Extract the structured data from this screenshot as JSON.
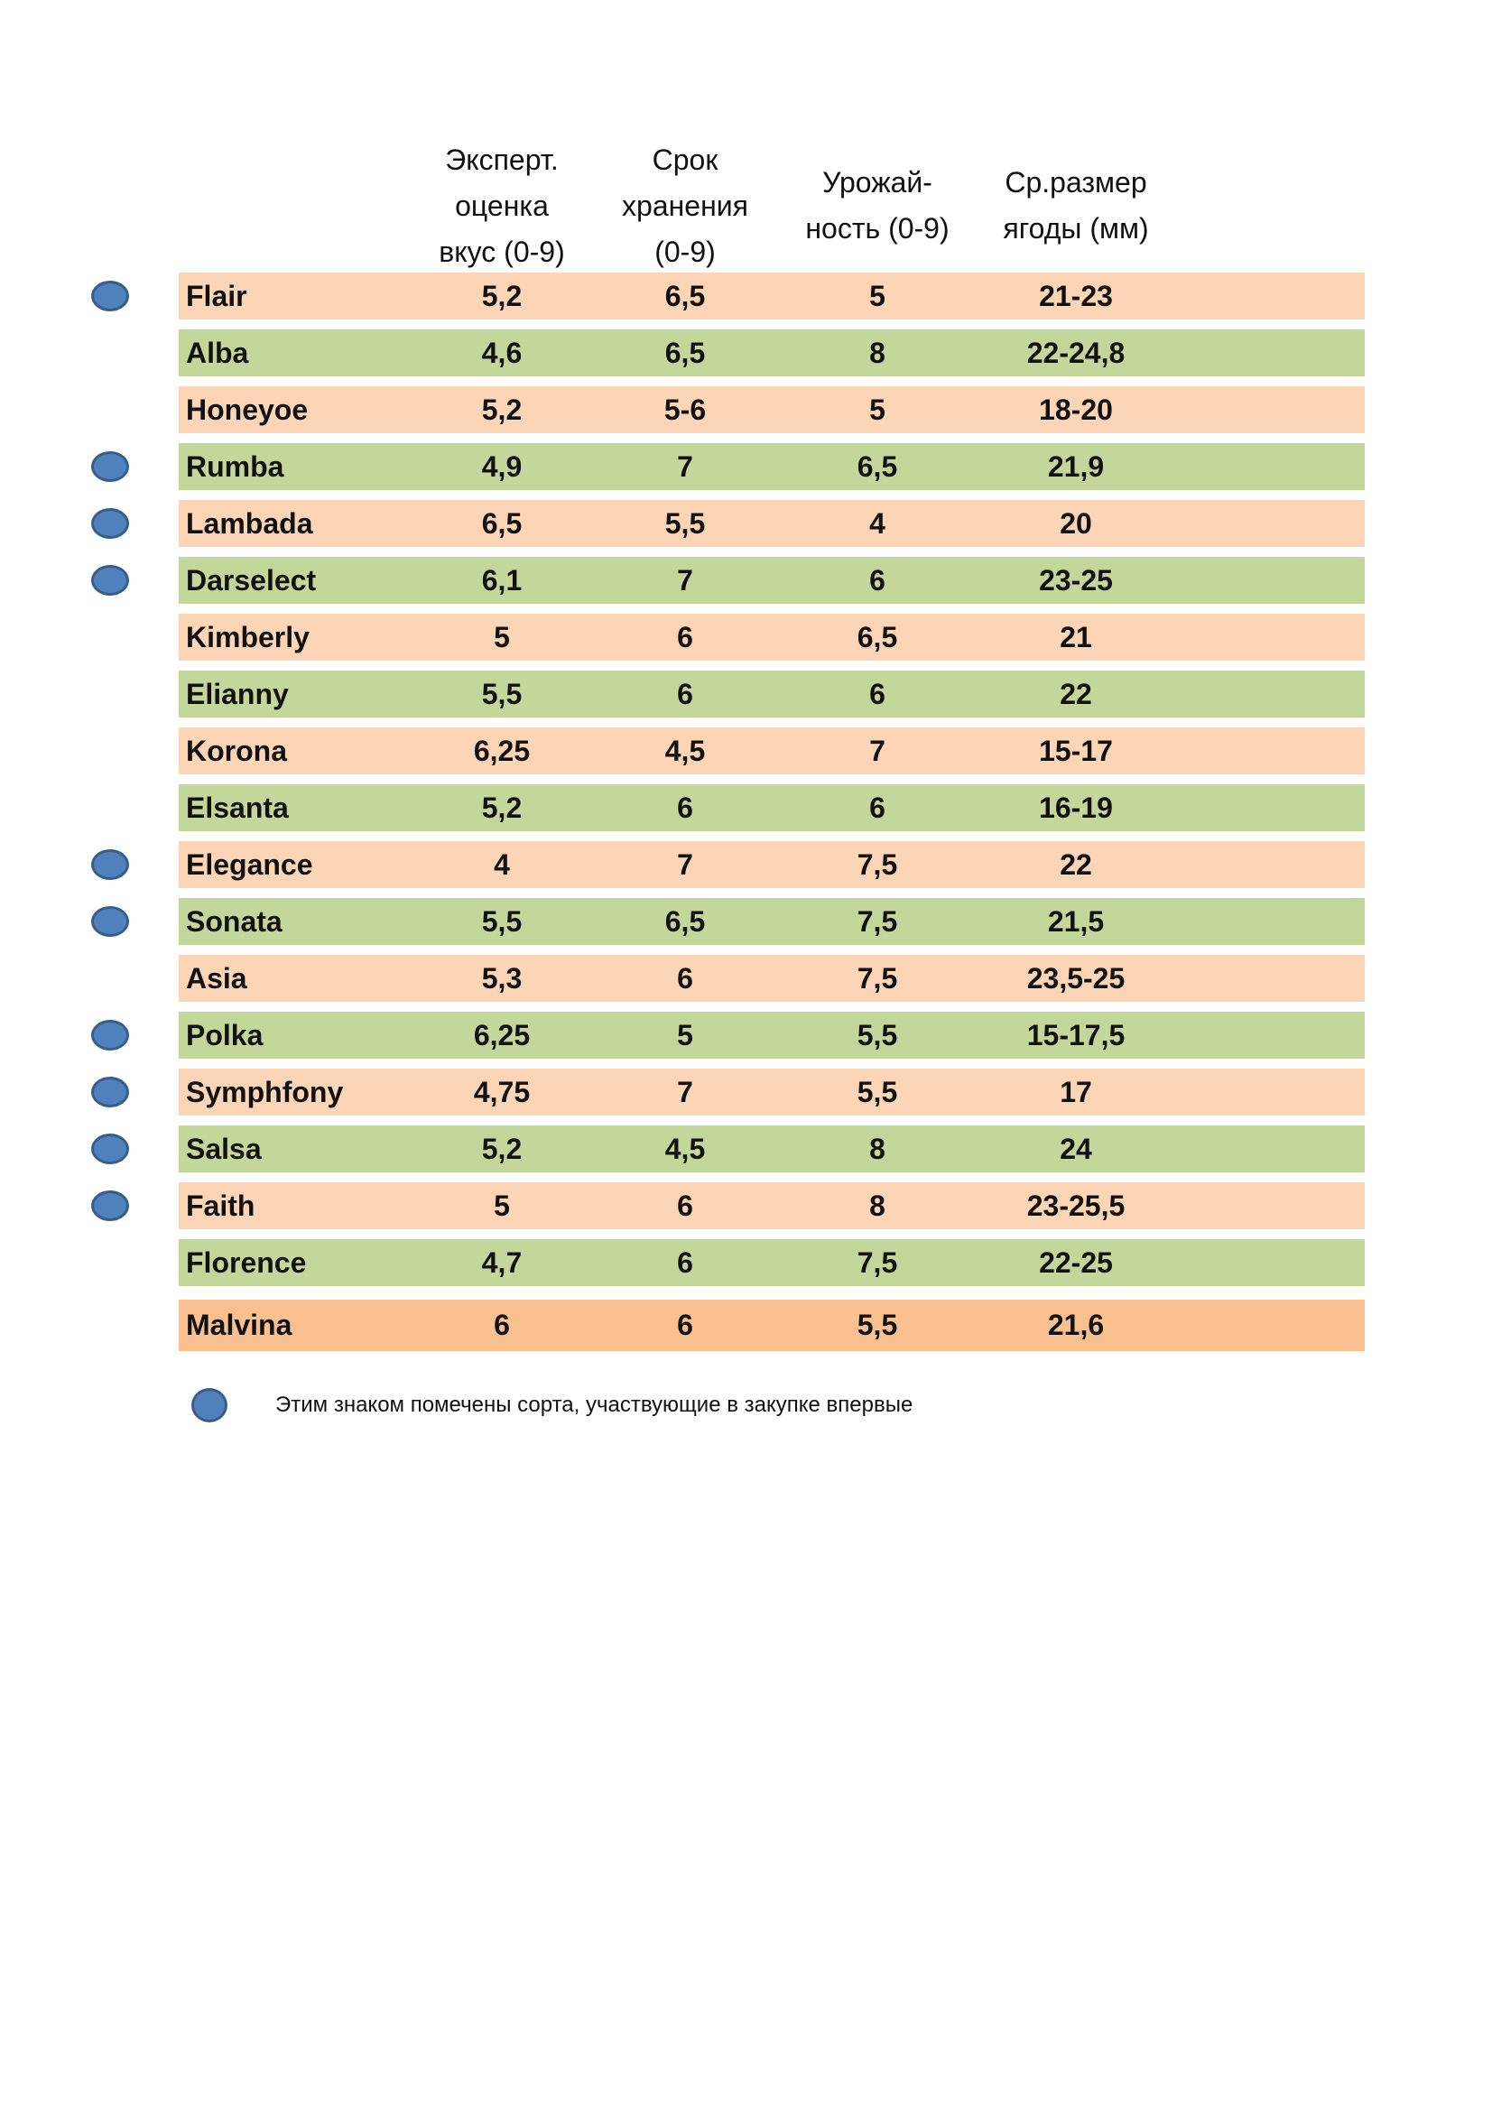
{
  "headers": [
    [
      "Эксперт.",
      "оценка",
      "вкус (0-9)"
    ],
    [
      "Срок",
      "хранения",
      "(0-9)"
    ],
    [
      "Урожай-",
      "ность (0-9)"
    ],
    [
      "Ср.размер",
      "ягоды (мм)"
    ]
  ],
  "rows": [
    {
      "name": "Flair",
      "taste": "5,2",
      "storage": "6,5",
      "yield": "5",
      "size": "21-23",
      "new": true
    },
    {
      "name": "Alba",
      "taste": "4,6",
      "storage": "6,5",
      "yield": "8",
      "size": "22-24,8",
      "new": false
    },
    {
      "name": "Honeyoe",
      "taste": "5,2",
      "storage": "5-6",
      "yield": "5",
      "size": "18-20",
      "new": false
    },
    {
      "name": "Rumba",
      "taste": "4,9",
      "storage": "7",
      "yield": "6,5",
      "size": "21,9",
      "new": true
    },
    {
      "name": "Lambada",
      "taste": "6,5",
      "storage": "5,5",
      "yield": "4",
      "size": "20",
      "new": true
    },
    {
      "name": "Darselect",
      "taste": "6,1",
      "storage": "7",
      "yield": "6",
      "size": "23-25",
      "new": true
    },
    {
      "name": "Kimberly",
      "taste": "5",
      "storage": "6",
      "yield": "6,5",
      "size": "21",
      "new": false
    },
    {
      "name": "Elianny",
      "taste": "5,5",
      "storage": "6",
      "yield": "6",
      "size": "22",
      "new": false
    },
    {
      "name": "Korona",
      "taste": "6,25",
      "storage": "4,5",
      "yield": "7",
      "size": "15-17",
      "new": false
    },
    {
      "name": "Elsanta",
      "taste": "5,2",
      "storage": "6",
      "yield": "6",
      "size": "16-19",
      "new": false
    },
    {
      "name": "Elegance",
      "taste": "4",
      "storage": "7",
      "yield": "7,5",
      "size": "22",
      "new": true
    },
    {
      "name": "Sonata",
      "taste": "5,5",
      "storage": "6,5",
      "yield": "7,5",
      "size": "21,5",
      "new": true
    },
    {
      "name": "Asia",
      "taste": "5,3",
      "storage": "6",
      "yield": "7,5",
      "size": "23,5-25",
      "new": false
    },
    {
      "name": "Polka",
      "taste": "6,25",
      "storage": "5",
      "yield": "5,5",
      "size": "15-17,5",
      "new": true
    },
    {
      "name": "Symphfony",
      "taste": "4,75",
      "storage": "7",
      "yield": "5,5",
      "size": "17",
      "new": true
    },
    {
      "name": "Salsa",
      "taste": "5,2",
      "storage": "4,5",
      "yield": "8",
      "size": "24",
      "new": true
    },
    {
      "name": "Faith",
      "taste": "5",
      "storage": "6",
      "yield": "8",
      "size": "23-25,5",
      "new": true
    },
    {
      "name": "Florence",
      "taste": "4,7",
      "storage": "6",
      "yield": "7,5",
      "size": "22-25",
      "new": false
    },
    {
      "name": "Malvina",
      "taste": "6",
      "storage": "6",
      "yield": "5,5",
      "size": "21,6",
      "new": false
    }
  ],
  "legend": {
    "text": "Этим знаком помечены сорта, участвующие в закупке впервые",
    "marker": "blue-dot"
  },
  "colors": {
    "peach": "#FBD5B5",
    "green": "#C4D79B",
    "highlight": "#FAC090",
    "dot": "#4F81BD"
  }
}
